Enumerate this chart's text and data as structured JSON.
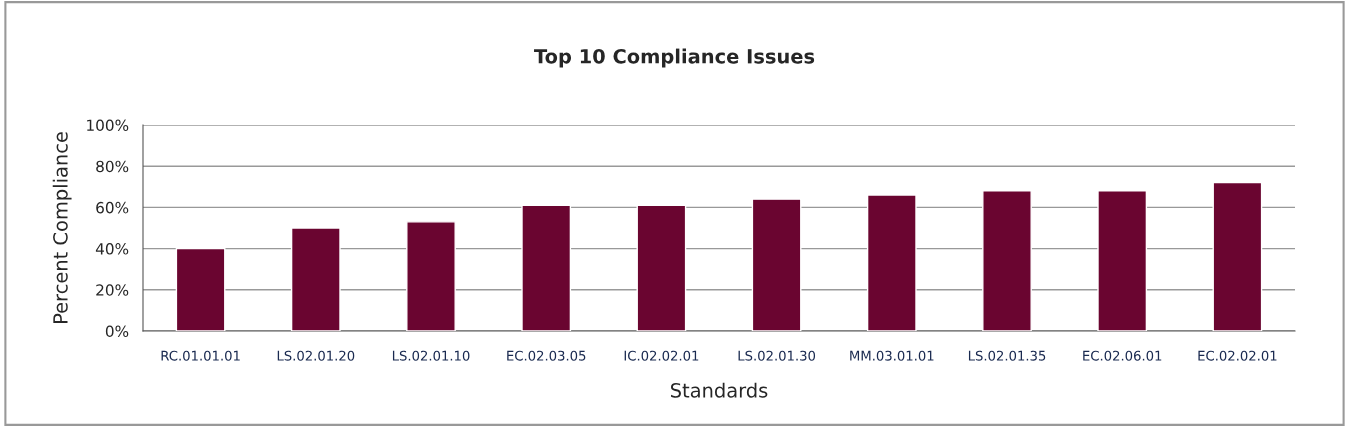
{
  "chart_data": {
    "type": "bar",
    "title": "Top 10 Compliance Issues",
    "xlabel": "Standards",
    "ylabel": "Percent Compliance",
    "categories": [
      "RC.01.01.01",
      "LS.02.01.20",
      "LS.02.01.10",
      "EC.02.03.05",
      "IC.02.02.01",
      "LS.02.01.30",
      "MM.03.01.01",
      "LS.02.01.35",
      "EC.02.06.01",
      "EC.02.02.01"
    ],
    "values": [
      40,
      50,
      53,
      61,
      61,
      64,
      66,
      68,
      68,
      72
    ],
    "color": "#6a0530",
    "ylim": [
      0,
      100
    ],
    "yticks": [
      {
        "value": 0,
        "label": "0%"
      },
      {
        "value": 20,
        "label": "20%"
      },
      {
        "value": 40,
        "label": "40%"
      },
      {
        "value": 60,
        "label": "60%"
      },
      {
        "value": 80,
        "label": "80%"
      },
      {
        "value": 100,
        "label": "100%"
      }
    ],
    "grid": "y",
    "legend": false
  }
}
